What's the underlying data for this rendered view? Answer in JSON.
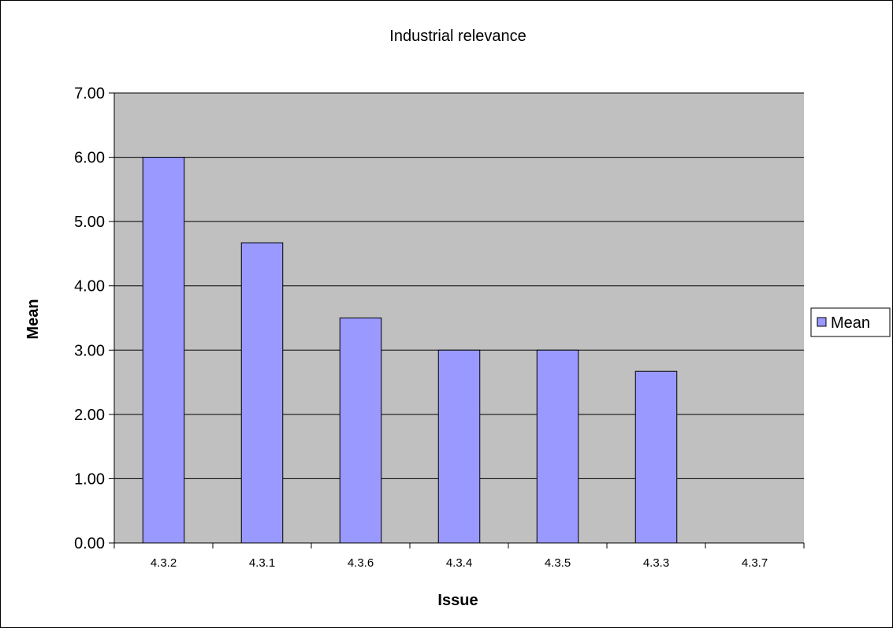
{
  "chart_data": {
    "type": "bar",
    "title": "Industrial relevance",
    "xlabel": "Issue",
    "ylabel": "Mean",
    "categories": [
      "4.3.2",
      "4.3.1",
      "4.3.6",
      "4.3.4",
      "4.3.5",
      "4.3.3",
      "4.3.7"
    ],
    "series": [
      {
        "name": "Mean",
        "values": [
          6.0,
          4.67,
          3.5,
          3.0,
          3.0,
          2.67,
          0
        ]
      }
    ],
    "ylim": [
      0,
      7
    ],
    "yticks": [
      "0.00",
      "1.00",
      "2.00",
      "3.00",
      "4.00",
      "5.00",
      "6.00",
      "7.00"
    ],
    "grid": true,
    "legend": "right",
    "colors": {
      "bar_fill": "#9999ff",
      "bar_stroke": "#000000",
      "plot_background": "#c0c0c0",
      "gridline": "#000000"
    }
  }
}
